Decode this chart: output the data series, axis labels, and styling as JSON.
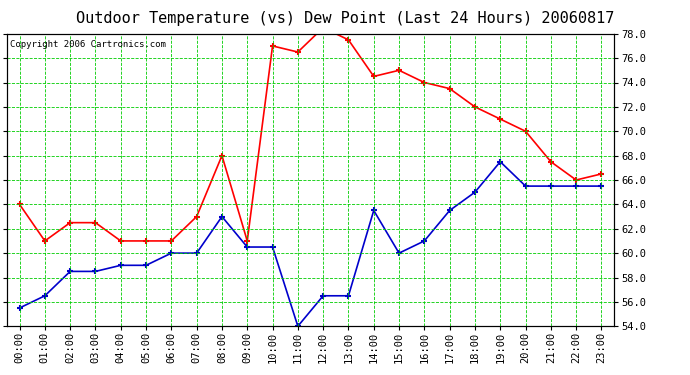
{
  "title": "Outdoor Temperature (vs) Dew Point (Last 24 Hours) 20060817",
  "copyright": "Copyright 2006 Cartronics.com",
  "hours": [
    "00:00",
    "01:00",
    "02:00",
    "03:00",
    "04:00",
    "05:00",
    "06:00",
    "07:00",
    "08:00",
    "09:00",
    "10:00",
    "11:00",
    "12:00",
    "13:00",
    "14:00",
    "15:00",
    "16:00",
    "17:00",
    "18:00",
    "19:00",
    "20:00",
    "21:00",
    "22:00",
    "23:00"
  ],
  "temp": [
    64.0,
    61.0,
    62.5,
    62.5,
    61.0,
    61.0,
    61.0,
    63.0,
    68.0,
    61.0,
    77.0,
    76.5,
    78.5,
    77.5,
    74.5,
    75.0,
    74.0,
    73.5,
    72.0,
    71.0,
    70.0,
    67.5,
    66.0,
    66.5
  ],
  "dewpoint": [
    55.5,
    56.5,
    58.5,
    58.5,
    59.0,
    59.0,
    60.0,
    60.0,
    63.0,
    60.5,
    60.5,
    54.0,
    56.5,
    56.5,
    63.5,
    60.0,
    61.0,
    63.5,
    65.0,
    67.5,
    65.5,
    65.5,
    65.5,
    65.5
  ],
  "temp_color": "#ff0000",
  "dew_color": "#0000cc",
  "grid_color": "#00cc00",
  "bg_color": "#ffffff",
  "plot_bg": "#ffffff",
  "ylim_min": 54.0,
  "ylim_max": 78.0,
  "yticks": [
    54.0,
    56.0,
    58.0,
    60.0,
    62.0,
    64.0,
    66.0,
    68.0,
    70.0,
    72.0,
    74.0,
    76.0,
    78.0
  ],
  "title_fontsize": 11,
  "copyright_fontsize": 6.5,
  "tick_fontsize": 7.5,
  "marker": "+",
  "marker_size": 5,
  "linewidth": 1.2
}
